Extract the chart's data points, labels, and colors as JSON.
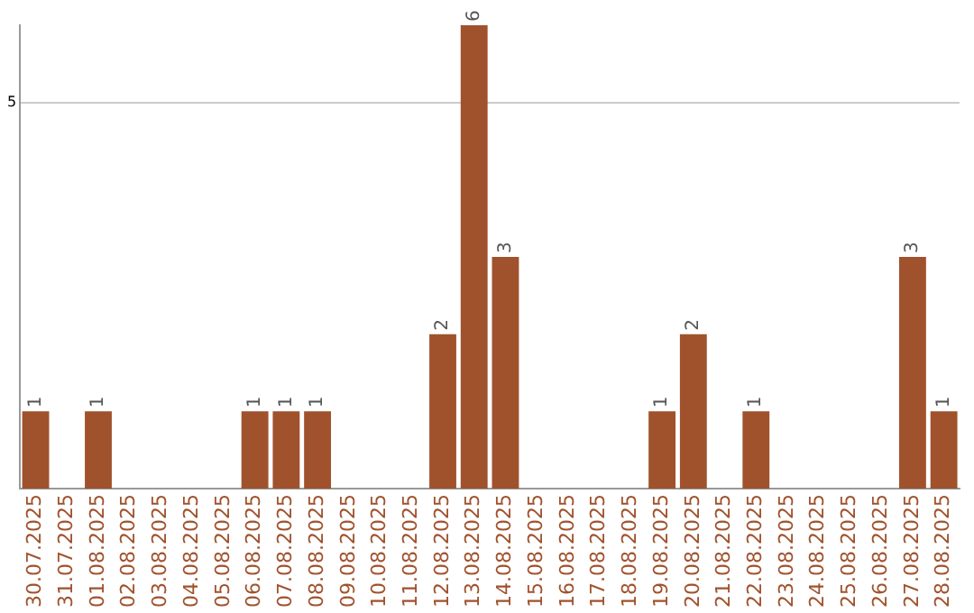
{
  "chart_data": {
    "type": "bar",
    "categories": [
      "30.07.2025",
      "31.07.2025",
      "01.08.2025",
      "02.08.2025",
      "03.08.2025",
      "04.08.2025",
      "05.08.2025",
      "06.08.2025",
      "07.08.2025",
      "08.08.2025",
      "09.08.2025",
      "10.08.2025",
      "11.08.2025",
      "12.08.2025",
      "13.08.2025",
      "14.08.2025",
      "15.08.2025",
      "16.08.2025",
      "17.08.2025",
      "18.08.2025",
      "19.08.2025",
      "20.08.2025",
      "21.08.2025",
      "22.08.2025",
      "23.08.2025",
      "24.08.2025",
      "25.08.2025",
      "26.08.2025",
      "27.08.2025",
      "28.08.2025"
    ],
    "values": [
      1,
      0,
      1,
      0,
      0,
      0,
      0,
      1,
      1,
      1,
      0,
      0,
      0,
      2,
      6,
      3,
      0,
      0,
      0,
      0,
      1,
      2,
      0,
      1,
      0,
      0,
      0,
      0,
      3,
      1
    ],
    "value_labels": [
      "1",
      null,
      "1",
      null,
      null,
      null,
      null,
      "1",
      "1",
      "1",
      null,
      null,
      null,
      "2",
      "6",
      "3",
      null,
      null,
      null,
      null,
      "1",
      "2",
      null,
      "1",
      null,
      null,
      null,
      null,
      "3",
      "1"
    ],
    "color": "#a0522d",
    "ylim": [
      0,
      6
    ],
    "yticks": [
      5
    ],
    "grid": "y",
    "legend": false
  }
}
